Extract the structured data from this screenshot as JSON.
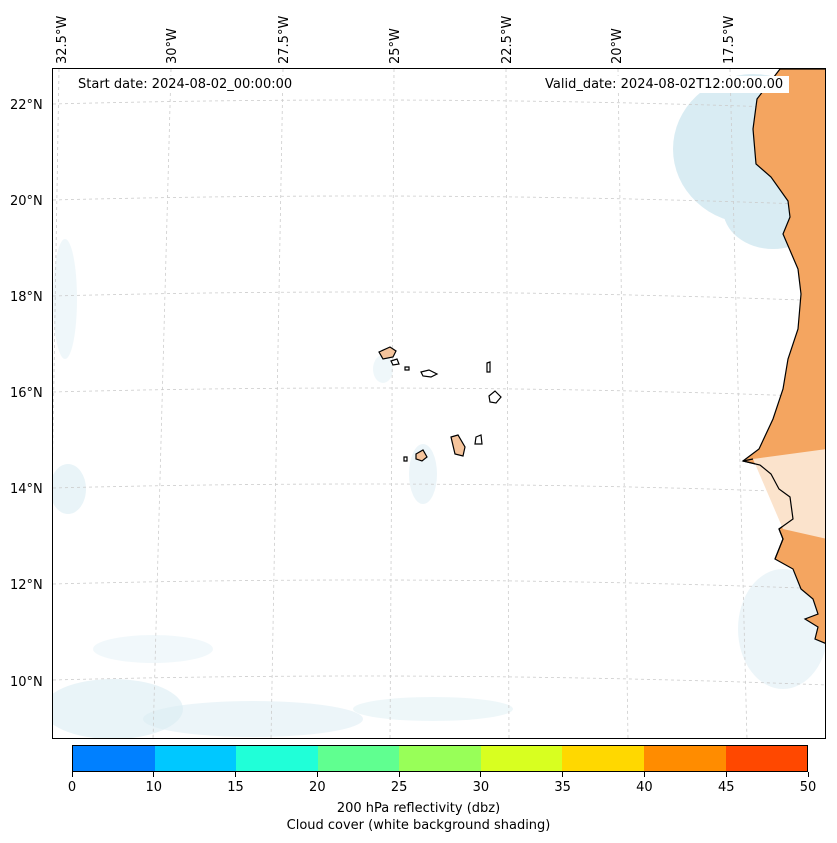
{
  "header": {
    "start_date": "Start date: 2024-08-02_00:00:00",
    "valid_date": "Valid_date: 2024-08-02T12:00:00.00"
  },
  "axes": {
    "longitude_labels": [
      "32.5°W",
      "30°W",
      "27.5°W",
      "25°W",
      "22.5°W",
      "20°W",
      "17.5°W"
    ],
    "latitude_labels": [
      "22°N",
      "20°N",
      "18°N",
      "16°N",
      "14°N",
      "12°N",
      "10°N"
    ]
  },
  "colorbar": {
    "tick_labels": [
      "0",
      "10",
      "15",
      "20",
      "25",
      "30",
      "35",
      "40",
      "45",
      "50"
    ],
    "colors": [
      "#0080ff",
      "#00c8ff",
      "#20ffd8",
      "#60ff90",
      "#98ff58",
      "#d8ff20",
      "#ffd800",
      "#ff8c00",
      "#ff4800"
    ],
    "label_line1": "200 hPa reflectivity (dbz)",
    "label_line2": "Cloud cover (white background shading)"
  },
  "colors": {
    "land": "#f4a560",
    "cloud": "#c9e4ee",
    "grid": "#cccccc"
  }
}
